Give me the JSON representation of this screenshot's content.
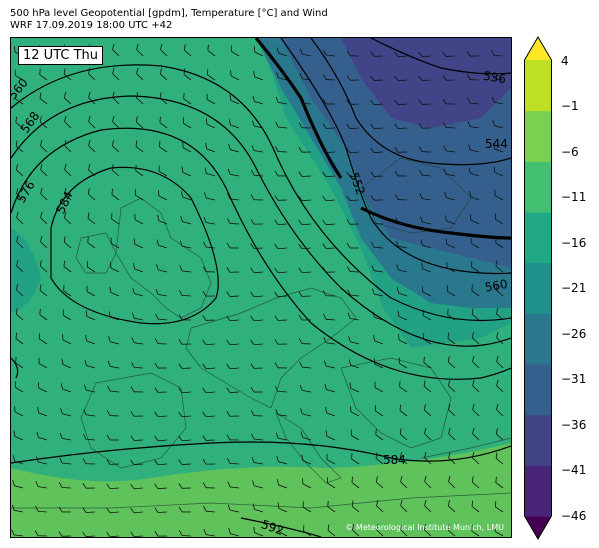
{
  "title": {
    "line1": "500 hPa level Geopotential [gpdm], Temperature [°C] and Wind",
    "line2": "WRF 17.09.2019 18:00 UTC +42"
  },
  "valid_time_label": "12 UTC Thu",
  "credit": "© Meteorological Institute Munich, LMU",
  "contour_labels": [
    "560",
    "568",
    "576",
    "584",
    "536",
    "544",
    "552",
    "560",
    "584",
    "592"
  ],
  "colorbar": {
    "ticks": [
      "4",
      "−1",
      "−6",
      "−11",
      "−16",
      "−21",
      "−26",
      "−31",
      "−36",
      "−41",
      "−46"
    ],
    "colors": [
      "#440154",
      "#482576",
      "#414487",
      "#35608d",
      "#2a788e",
      "#21918c",
      "#22a884",
      "#43bf71",
      "#7ad151",
      "#bddf26",
      "#fde725"
    ]
  },
  "temperature_colors": {
    "warm_south": "#5fc25a",
    "mid": "#30b07c",
    "cool": "#22a185",
    "cold": "#2a788e",
    "colder": "#35608d",
    "coldest": "#414487"
  }
}
